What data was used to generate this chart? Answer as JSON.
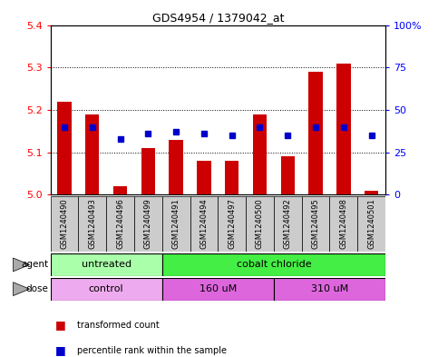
{
  "title": "GDS4954 / 1379042_at",
  "samples": [
    "GSM1240490",
    "GSM1240493",
    "GSM1240496",
    "GSM1240499",
    "GSM1240491",
    "GSM1240494",
    "GSM1240497",
    "GSM1240500",
    "GSM1240492",
    "GSM1240495",
    "GSM1240498",
    "GSM1240501"
  ],
  "red_values": [
    5.22,
    5.19,
    5.02,
    5.11,
    5.13,
    5.08,
    5.08,
    5.19,
    5.09,
    5.29,
    5.31,
    5.01
  ],
  "blue_values": [
    40,
    40,
    33,
    36,
    37,
    36,
    35,
    40,
    35,
    40,
    40,
    35
  ],
  "ymin": 5.0,
  "ymax": 5.4,
  "y_ticks": [
    5.0,
    5.1,
    5.2,
    5.3,
    5.4
  ],
  "y2min": 0,
  "y2max": 100,
  "y2_ticks": [
    0,
    25,
    50,
    75,
    100
  ],
  "y2_ticklabels": [
    "0",
    "25",
    "50",
    "75",
    "100%"
  ],
  "agent_labels": [
    {
      "label": "untreated",
      "start": 0,
      "end": 4,
      "color": "#aaffaa"
    },
    {
      "label": "cobalt chloride",
      "start": 4,
      "end": 12,
      "color": "#44ee44"
    }
  ],
  "dose_labels": [
    {
      "label": "control",
      "start": 0,
      "end": 4,
      "color": "#eeaaee"
    },
    {
      "label": "160 uM",
      "start": 4,
      "end": 8,
      "color": "#dd66dd"
    },
    {
      "label": "310 uM",
      "start": 8,
      "end": 12,
      "color": "#dd66dd"
    }
  ],
  "bar_color": "#cc0000",
  "dot_color": "#0000cc",
  "bar_width": 0.5,
  "legend_red": "transformed count",
  "legend_blue": "percentile rank within the sample",
  "bar_bg_color": "#cccccc",
  "group_sep": 3.5,
  "dose_sep1": 3.5,
  "dose_sep2": 7.5
}
